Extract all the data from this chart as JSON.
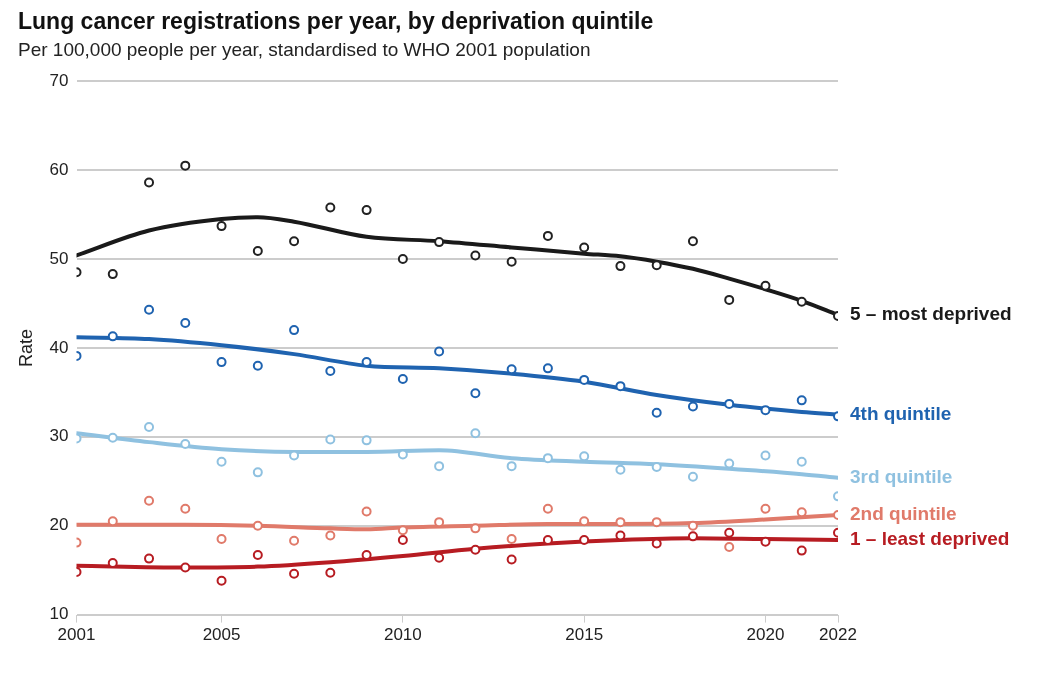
{
  "chart_data": {
    "type": "line",
    "title": "Lung cancer registrations per year, by deprivation quintile",
    "subtitle": "Per 100,000 people per year, standardised to WHO 2001 population",
    "ylabel": "Rate",
    "xlim": [
      2001,
      2022
    ],
    "xticks": [
      2001,
      2005,
      2010,
      2015,
      2020,
      2022
    ],
    "ylim": [
      10,
      70
    ],
    "yticks": [
      10,
      20,
      30,
      40,
      50,
      60,
      70
    ],
    "grid": "y",
    "legend": false,
    "series": [
      {
        "type": "scatter",
        "marker": "circle",
        "color": "#222222",
        "x": [
          2001,
          2002,
          2003,
          2004,
          2005,
          2006,
          2007,
          2008,
          2009,
          2010,
          2011,
          2012,
          2013,
          2014,
          2015,
          2016,
          2017,
          2018,
          2019,
          2020,
          2021,
          2022
        ],
        "values": [
          48.5,
          48.3,
          58.6,
          60.5,
          53.7,
          50.9,
          52.0,
          55.8,
          55.5,
          50.0,
          51.9,
          50.4,
          49.7,
          52.6,
          51.3,
          49.2,
          49.3,
          52.0,
          45.4,
          47.0,
          45.2,
          43.6
        ]
      },
      {
        "type": "line",
        "marker": "none",
        "name": "5 – most deprived",
        "color": "#1a1a1a",
        "x": [
          2001,
          2003,
          2005,
          2006,
          2007,
          2009,
          2011,
          2013,
          2015,
          2016,
          2017,
          2018,
          2019,
          2020,
          2021,
          2022
        ],
        "values": [
          50.4,
          53.2,
          54.5,
          54.7,
          54.2,
          52.5,
          52.0,
          51.3,
          50.6,
          50.3,
          49.7,
          48.9,
          47.8,
          46.6,
          45.3,
          43.7
        ]
      },
      {
        "type": "scatter",
        "marker": "circle",
        "color": "#1f63b0",
        "x": [
          2001,
          2002,
          2003,
          2004,
          2005,
          2006,
          2007,
          2008,
          2009,
          2010,
          2011,
          2012,
          2013,
          2014,
          2015,
          2016,
          2017,
          2018,
          2019,
          2020,
          2021,
          2022
        ],
        "values": [
          39.1,
          41.3,
          44.3,
          42.8,
          38.4,
          38.0,
          42.0,
          37.4,
          38.4,
          36.5,
          39.6,
          34.9,
          37.6,
          37.7,
          36.4,
          35.7,
          32.7,
          33.4,
          33.7,
          33.0,
          34.1,
          32.3
        ]
      },
      {
        "type": "line",
        "marker": "none",
        "name": "4th quintile",
        "color": "#1f63b0",
        "x": [
          2001,
          2003,
          2005,
          2007,
          2009,
          2011,
          2013,
          2015,
          2017,
          2019,
          2021,
          2022
        ],
        "values": [
          41.2,
          41.0,
          40.3,
          39.3,
          38.0,
          37.7,
          37.1,
          36.2,
          34.7,
          33.6,
          32.8,
          32.5
        ]
      },
      {
        "type": "scatter",
        "marker": "circle",
        "color": "#8fc1e0",
        "x": [
          2001,
          2002,
          2003,
          2004,
          2005,
          2006,
          2007,
          2008,
          2009,
          2010,
          2011,
          2012,
          2013,
          2014,
          2015,
          2016,
          2017,
          2018,
          2019,
          2020,
          2021,
          2022
        ],
        "values": [
          29.8,
          29.9,
          31.1,
          29.2,
          27.2,
          26.0,
          27.9,
          29.7,
          29.6,
          28.0,
          26.7,
          30.4,
          26.7,
          27.6,
          27.8,
          26.3,
          26.6,
          25.5,
          27.0,
          27.9,
          27.2,
          23.3
        ]
      },
      {
        "type": "line",
        "marker": "none",
        "name": "3rd quintile",
        "color": "#8fc1e0",
        "x": [
          2001,
          2003,
          2005,
          2007,
          2009,
          2011,
          2013,
          2015,
          2017,
          2019,
          2021,
          2022
        ],
        "values": [
          30.4,
          29.4,
          28.6,
          28.3,
          28.3,
          28.5,
          27.6,
          27.2,
          26.9,
          26.4,
          25.8,
          25.4
        ]
      },
      {
        "type": "scatter",
        "marker": "circle",
        "color": "#e07a6a",
        "x": [
          2001,
          2002,
          2003,
          2004,
          2005,
          2006,
          2007,
          2008,
          2009,
          2010,
          2011,
          2012,
          2013,
          2014,
          2015,
          2016,
          2017,
          2018,
          2019,
          2020,
          2021,
          2022
        ],
        "values": [
          18.1,
          20.5,
          22.8,
          21.9,
          18.5,
          20.0,
          18.3,
          18.9,
          21.6,
          19.5,
          20.4,
          19.7,
          18.5,
          21.9,
          20.5,
          20.4,
          20.4,
          20.0,
          17.6,
          21.9,
          21.5,
          21.2
        ]
      },
      {
        "type": "line",
        "marker": "none",
        "name": "2nd quintile",
        "color": "#e07a6a",
        "x": [
          2001,
          2004,
          2006,
          2008,
          2009,
          2010,
          2012,
          2014,
          2016,
          2018,
          2020,
          2022
        ],
        "values": [
          20.1,
          20.1,
          20.0,
          19.7,
          19.6,
          19.8,
          20.0,
          20.2,
          20.2,
          20.3,
          20.7,
          21.2
        ]
      },
      {
        "type": "scatter",
        "marker": "circle",
        "color": "#b71c22",
        "x": [
          2001,
          2002,
          2003,
          2004,
          2005,
          2006,
          2007,
          2008,
          2009,
          2010,
          2011,
          2012,
          2013,
          2014,
          2015,
          2016,
          2017,
          2018,
          2019,
          2020,
          2021,
          2022
        ],
        "values": [
          14.8,
          15.8,
          16.3,
          15.3,
          13.8,
          16.7,
          14.6,
          14.7,
          16.7,
          18.4,
          16.4,
          17.3,
          16.2,
          18.4,
          18.4,
          18.9,
          18.0,
          18.8,
          19.2,
          18.2,
          17.2,
          19.2
        ]
      },
      {
        "type": "line",
        "marker": "none",
        "name": "1 – least deprived",
        "color": "#b71c22",
        "x": [
          2001,
          2004,
          2006,
          2008,
          2010,
          2012,
          2014,
          2016,
          2018,
          2020,
          2022
        ],
        "values": [
          15.5,
          15.3,
          15.4,
          15.9,
          16.6,
          17.4,
          18.0,
          18.4,
          18.6,
          18.5,
          18.4
        ]
      }
    ]
  }
}
